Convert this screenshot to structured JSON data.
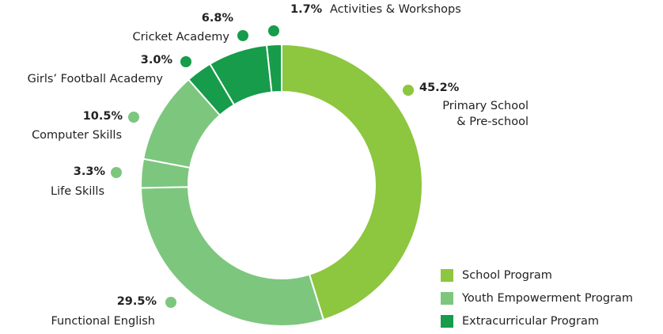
{
  "chart_data": {
    "type": "donut",
    "categories": [
      "Primary School\n& Pre-school",
      "Functional English",
      "Life Skills",
      "Computer Skills",
      "Girls’ Football Academy",
      "Cricket Academy",
      "Activities & Workshops"
    ],
    "values": [
      45.2,
      29.5,
      3.3,
      10.5,
      3.0,
      6.8,
      1.7
    ],
    "value_labels": [
      "45.2%",
      "29.5%",
      "3.3%",
      "10.5%",
      "3.0%",
      "6.8%",
      "1.7%"
    ],
    "colors": [
      "#8dc63f",
      "#7dc67e",
      "#7dc67e",
      "#7dc67e",
      "#169c4a",
      "#169c4a",
      "#169c4a"
    ],
    "legend": [
      {
        "name": "School Program",
        "color": "#8dc63f"
      },
      {
        "name": "Youth Empowerment Program",
        "color": "#7dc67e"
      },
      {
        "name": "Extracurricular Program",
        "color": "#169c4a"
      }
    ]
  }
}
